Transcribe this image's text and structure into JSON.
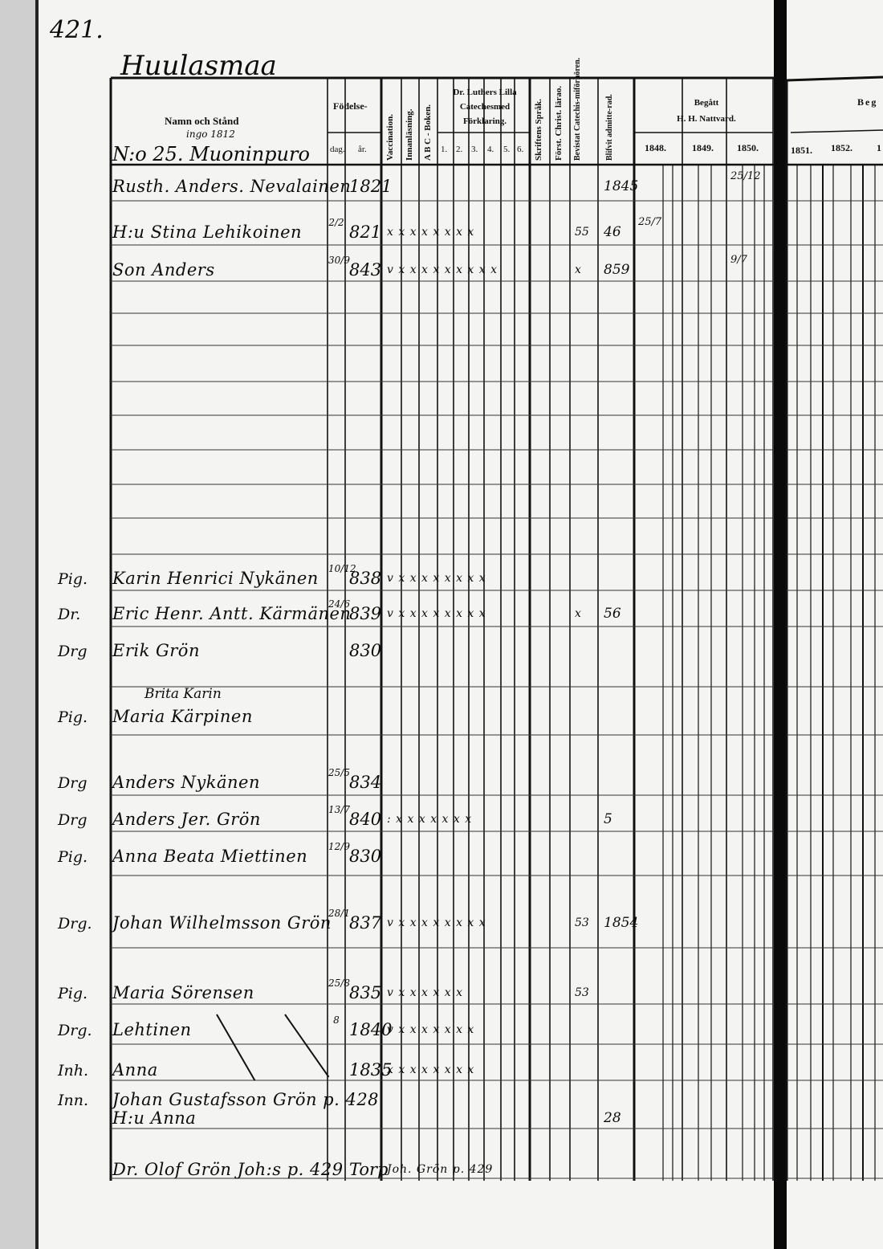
{
  "page": {
    "page_number": "421.",
    "village": "Huulasmaa"
  },
  "header": {
    "name_col": "Namn och Stånd",
    "name_note": "ingo 1812",
    "birth": "Födelse-",
    "birth_day": "dag.",
    "birth_year": "år.",
    "vaccination": "Vaccination.",
    "innanlasning": "Innanläsning.",
    "abc": "A B C - Boken.",
    "catechism": [
      "Dr. Luthers Lilla",
      "Catechesmed",
      "Förklaring."
    ],
    "catechism_nums": [
      "1.",
      "2.",
      "3.",
      "4.",
      "5.",
      "6."
    ],
    "skriftens": "Skriftens Språk.",
    "forst": "Först. Christ. lärao.",
    "bevistat": "Bevistat Catechis-miförhören.",
    "blifvit": "Blifvit admitte-rad.",
    "begatt": [
      "Begått",
      "H. H. Nattvard."
    ],
    "years_left": [
      "1848.",
      "1849.",
      "1850."
    ],
    "years_right": [
      "1851.",
      "1852.",
      "1"
    ],
    "right_begatt": "Beg"
  },
  "house": "N:o 25. Muoninpuro",
  "rows": [
    {
      "prefix": "",
      "name": "Rusth. Anders. Nevalainen",
      "day": "",
      "year": "1821",
      "marks": "",
      "bev": "",
      "adm": "1845",
      "comm": "25/12"
    },
    {
      "prefix": "",
      "name": "H:u Stina Lehikoinen",
      "day": "2/2",
      "year": "821",
      "marks": "x x x x x x x x",
      "bev": "55",
      "adm": "46",
      "comm": "25/7"
    },
    {
      "prefix": "",
      "name": "Son Anders",
      "day": "30/9",
      "year": "843",
      "marks": "v x x x x x x x x x",
      "bev": "x",
      "adm": "859",
      "comm": "9/7"
    },
    {
      "prefix": "Pig.",
      "name": "Karin Henrici Nykänen",
      "day": "10/12",
      "year": "838",
      "marks": "v x x x x x x x x",
      "bev": "",
      "adm": "",
      "comm": ""
    },
    {
      "prefix": "Dr.",
      "name": "Eric Henr. Antt. Kärmänen",
      "day": "24/6",
      "year": "839",
      "marks": "v x x x x x x x x",
      "bev": "x",
      "adm": "56",
      "comm": ""
    },
    {
      "prefix": "Drg",
      "name": "Erik Grön",
      "day": "",
      "year": "830",
      "marks": "",
      "bev": "",
      "adm": "",
      "comm": ""
    },
    {
      "prefix": "Pig.",
      "name": "Maria Kärpinen",
      "above": "Brita Karin",
      "day": "",
      "year": "",
      "marks": "",
      "bev": "",
      "adm": "",
      "comm": ""
    },
    {
      "prefix": "Drg",
      "name": "Anders Nykänen",
      "day": "25/5",
      "year": "834",
      "marks": "",
      "bev": "",
      "adm": "",
      "comm": ""
    },
    {
      "prefix": "Drg",
      "name": "Anders Jer. Grön",
      "day": "13/7",
      "year": "840",
      "marks": ": x x x x x x x",
      "bev": "",
      "adm": "5",
      "comm": ""
    },
    {
      "prefix": "Pig.",
      "name": "Anna Beata Miettinen",
      "day": "12/9",
      "year": "830",
      "marks": "",
      "bev": "",
      "adm": "",
      "comm": ""
    },
    {
      "prefix": "Drg.",
      "name": "Johan Wilhelmsson Grön",
      "day": "28/1",
      "year": "837",
      "marks": "v x x x x x x x x",
      "bev": "53",
      "adm": "1854",
      "comm": ""
    },
    {
      "prefix": "Pig.",
      "name": "Maria Sörensen",
      "day": "25/8",
      "year": "835",
      "marks": "v x x x x x x",
      "bev": "53",
      "adm": "",
      "comm": ""
    },
    {
      "prefix": "Drg.",
      "name": "Lehtinen",
      "day": "8",
      "year": "1840",
      "marks": "v x x x x x x x",
      "bev": "",
      "adm": "",
      "comm": ""
    },
    {
      "prefix": "Inh.",
      "name": "Anna",
      "day": "",
      "year": "1835",
      "marks": "x x x x x x x x",
      "bev": "",
      "adm": "",
      "comm": ""
    },
    {
      "prefix": "Inn.",
      "name": "Johan Gustafsson Grön p. 428",
      "day": "",
      "year": "",
      "marks": "",
      "bev": "",
      "adm": "",
      "comm": ""
    },
    {
      "prefix": "",
      "name": "H:u Anna",
      "day": "",
      "year": "",
      "marks": "",
      "bev": "",
      "adm": "28",
      "comm": ""
    },
    {
      "prefix": "",
      "name": "Dr. Olof Grön Joh:s p. 429",
      "day": "",
      "year": "Torp",
      "marks": "Joh. Grön p. 429",
      "bev": "",
      "adm": "",
      "comm": ""
    }
  ]
}
